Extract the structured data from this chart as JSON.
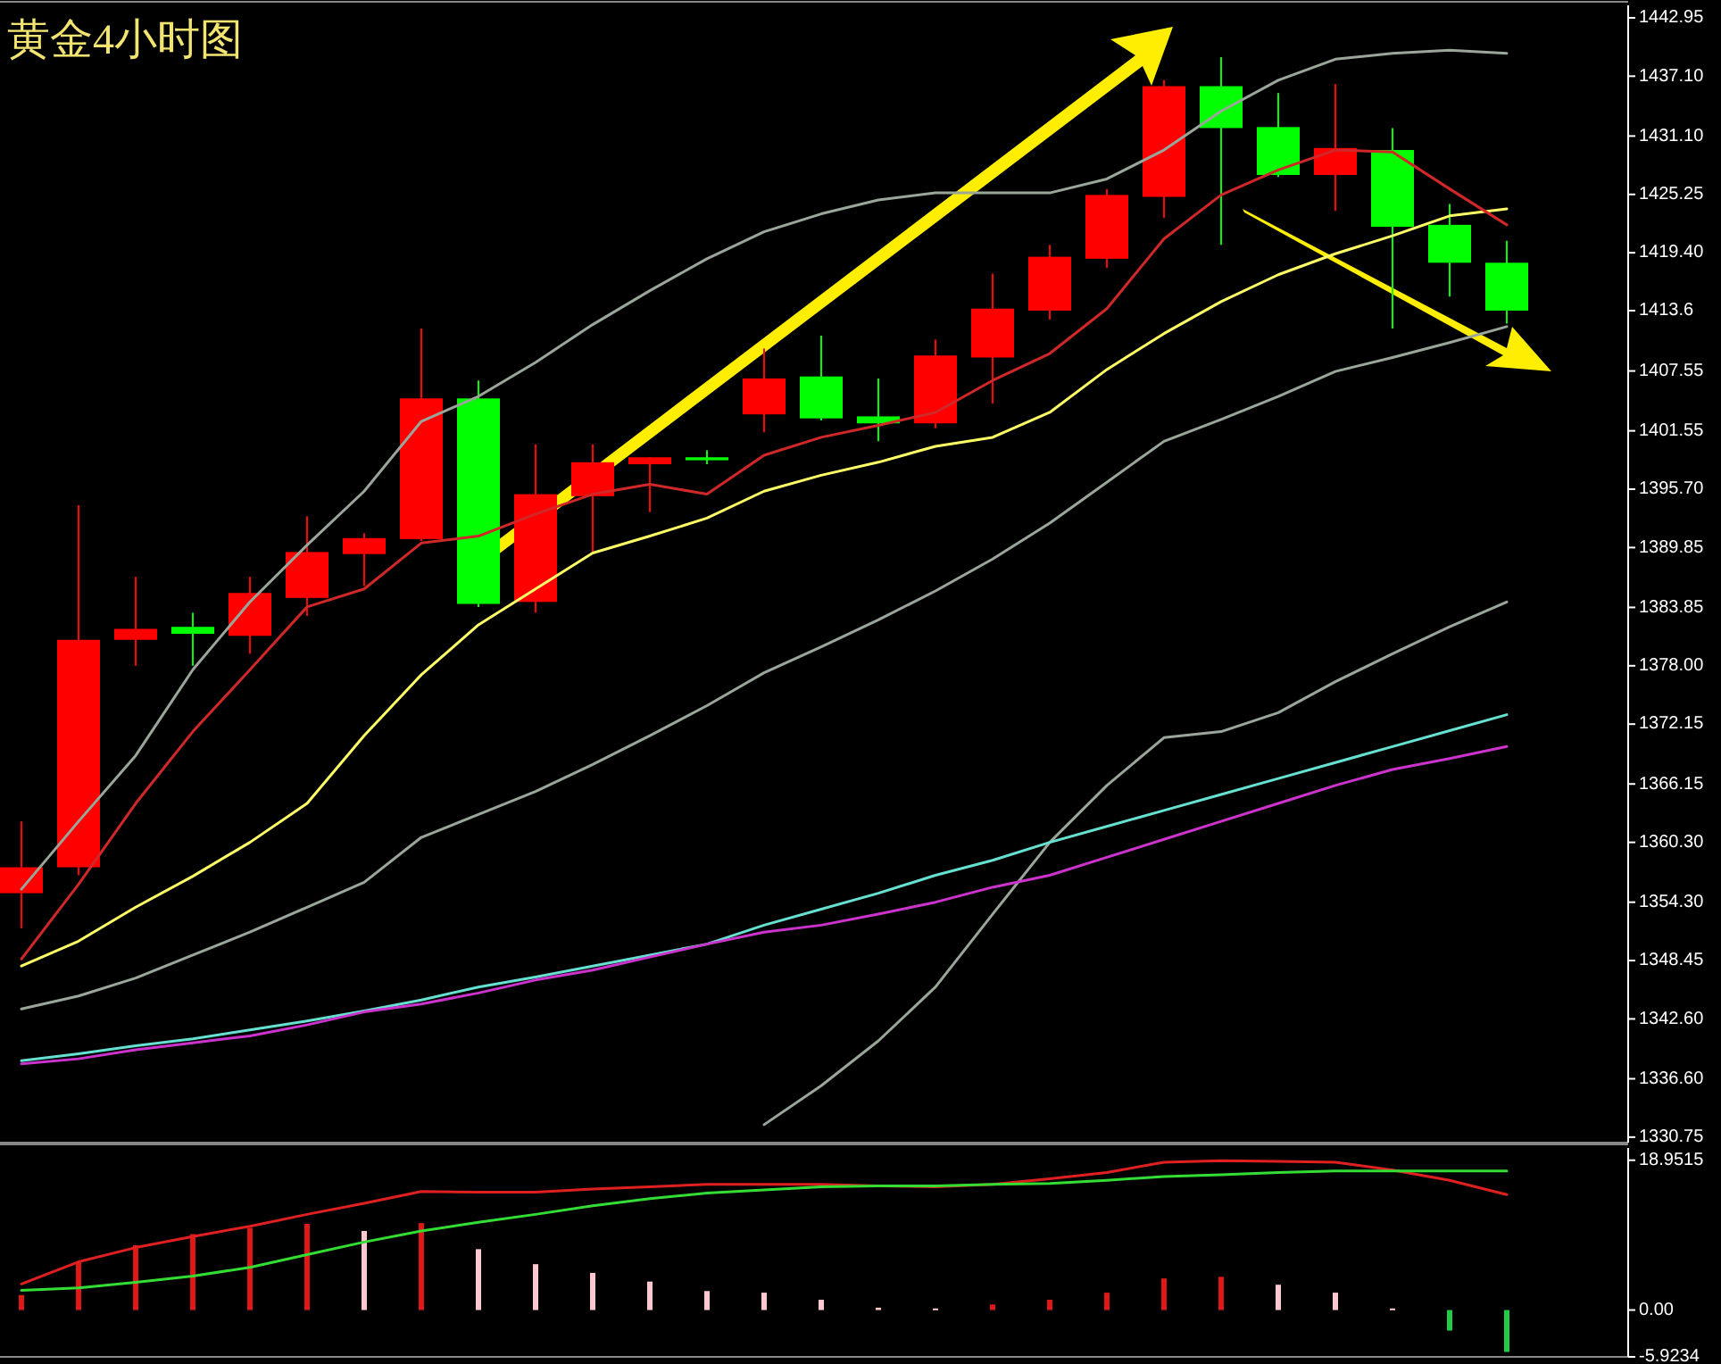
{
  "chart_data": [
    {
      "type": "candlestick",
      "title": "黄金4小时图",
      "categories": [
        null,
        null,
        null,
        null,
        null,
        null,
        null,
        null,
        null,
        null,
        null,
        null,
        null,
        null,
        null,
        null,
        null,
        null,
        null,
        null,
        null,
        null,
        null,
        null,
        null,
        null,
        null
      ],
      "ohlc": [
        [
          1355.2,
          1362.4,
          1351.7,
          1357.8
        ],
        [
          1357.8,
          1394.1,
          1357.0,
          1380.6
        ],
        [
          1380.6,
          1386.9,
          1378.0,
          1381.7
        ],
        [
          1381.9,
          1383.3,
          1378.0,
          1381.2
        ],
        [
          1381.0,
          1386.9,
          1379.2,
          1385.3
        ],
        [
          1384.8,
          1393.0,
          1383.0,
          1389.4
        ],
        [
          1389.2,
          1391.3,
          1386.0,
          1390.8
        ],
        [
          1390.7,
          1411.8,
          1390.5,
          1404.8
        ],
        [
          1404.8,
          1406.6,
          1383.9,
          1384.2
        ],
        [
          1384.4,
          1400.2,
          1383.3,
          1395.2
        ],
        [
          1395.0,
          1400.2,
          1389.2,
          1398.4
        ],
        [
          1398.2,
          1398.9,
          1393.4,
          1398.9
        ],
        [
          1398.9,
          1399.6,
          1398.2,
          1398.6
        ],
        [
          1403.2,
          1409.8,
          1401.4,
          1406.8
        ],
        [
          1407.0,
          1411.1,
          1402.6,
          1402.8
        ],
        [
          1403.0,
          1406.8,
          1400.5,
          1402.3
        ],
        [
          1402.3,
          1410.7,
          1401.8,
          1409.1
        ],
        [
          1408.9,
          1417.3,
          1404.3,
          1413.8
        ],
        [
          1413.6,
          1420.2,
          1412.7,
          1419.0
        ],
        [
          1418.8,
          1425.8,
          1417.9,
          1425.2
        ],
        [
          1425.0,
          1436.7,
          1422.9,
          1436.1
        ],
        [
          1436.1,
          1439.0,
          1420.2,
          1431.9
        ],
        [
          1432.0,
          1435.4,
          1427.0,
          1427.2
        ],
        [
          1427.2,
          1436.3,
          1423.6,
          1429.9
        ],
        [
          1429.7,
          1431.9,
          1411.8,
          1422.0
        ],
        [
          1422.2,
          1424.3,
          1415.0,
          1418.4
        ],
        [
          1418.4,
          1420.6,
          1412.3,
          1413.6
        ]
      ],
      "colors": [
        "#ff0000",
        "#ff0000",
        "#ff0000",
        "#00ff00",
        "#ff0000",
        "#ff0000",
        "#ff0000",
        "#ff0000",
        "#00ff00",
        "#ff0000",
        "#ff0000",
        "#ff0000",
        "#00ff00",
        "#ff0000",
        "#00ff00",
        "#00ff00",
        "#ff0000",
        "#ff0000",
        "#ff0000",
        "#ff0000",
        "#ff0000",
        "#00ff00",
        "#00ff00",
        "#ff0000",
        "#00ff00",
        "#00ff00",
        "#00ff00"
      ],
      "series": [
        {
          "type": "line",
          "color": "#9aa69a",
          "values": [
            1355.6,
            1362.4,
            1369.0,
            1377.6,
            1384.4,
            1390.1,
            1395.5,
            1402.5,
            1405.0,
            1408.4,
            1412.2,
            1415.6,
            1418.8,
            1421.5,
            1423.3,
            1424.7,
            1425.4,
            1425.4,
            1425.4,
            1426.8,
            1429.7,
            1433.6,
            1436.7,
            1438.8,
            1439.4,
            1439.7,
            1439.4
          ]
        },
        {
          "type": "line",
          "color": "#9aa69a",
          "values": [
            1343.6,
            1344.9,
            1346.7,
            1349.0,
            1351.3,
            1353.8,
            1356.3,
            1360.8,
            1363.1,
            1365.4,
            1368.1,
            1371.0,
            1374.0,
            1377.3,
            1379.9,
            1382.6,
            1385.5,
            1388.7,
            1392.3,
            1396.4,
            1400.5,
            1402.7,
            1405.0,
            1407.5,
            1408.9,
            1410.4,
            1412.0
          ]
        },
        {
          "type": "line",
          "color": "#9aa69a",
          "values": [
            null,
            null,
            null,
            null,
            null,
            null,
            null,
            null,
            null,
            null,
            null,
            null,
            null,
            1332.0,
            1335.9,
            1340.4,
            1345.8,
            1353.1,
            1360.3,
            1366.0,
            1370.8,
            1371.4,
            1373.3,
            1376.4,
            1379.2,
            1381.9,
            1384.4
          ]
        },
        {
          "type": "line",
          "color": "#66e0d0",
          "values": [
            1338.4,
            1339.1,
            1339.9,
            1340.6,
            1341.5,
            1342.4,
            1343.4,
            1344.5,
            1345.8,
            1346.8,
            1347.9,
            1349.0,
            1350.1,
            1352.0,
            1353.6,
            1355.2,
            1357.0,
            1358.5,
            1360.3,
            1361.9,
            1363.5,
            1365.1,
            1366.7,
            1368.3,
            1369.9,
            1371.5,
            1373.1
          ]
        },
        {
          "type": "line",
          "color": "#cc33cc",
          "values": [
            1338.1,
            1338.6,
            1339.5,
            1340.2,
            1340.9,
            1342.0,
            1343.3,
            1344.1,
            1345.2,
            1346.5,
            1347.5,
            1348.8,
            1350.1,
            1351.3,
            1352.0,
            1353.1,
            1354.3,
            1355.8,
            1357.0,
            1358.8,
            1360.6,
            1362.4,
            1364.2,
            1366.0,
            1367.6,
            1368.7,
            1369.9
          ]
        },
        {
          "type": "line",
          "color": "#ffff66",
          "values": [
            1347.9,
            1350.4,
            1353.8,
            1356.9,
            1360.3,
            1364.2,
            1371.0,
            1377.1,
            1382.1,
            1385.7,
            1389.3,
            1391.0,
            1392.8,
            1395.5,
            1397.1,
            1398.4,
            1400.0,
            1400.9,
            1403.4,
            1407.7,
            1411.3,
            1414.5,
            1417.2,
            1419.3,
            1421.1,
            1423.1,
            1423.8
          ]
        },
        {
          "type": "line",
          "color": "#d02828",
          "values": [
            1348.6,
            1356.1,
            1364.2,
            1371.4,
            1377.6,
            1383.9,
            1385.7,
            1390.3,
            1391.0,
            1393.2,
            1395.2,
            1396.2,
            1395.2,
            1399.1,
            1400.9,
            1402.1,
            1403.4,
            1406.6,
            1409.3,
            1413.8,
            1420.8,
            1425.2,
            1427.7,
            1429.7,
            1429.5,
            1425.8,
            1422.2
          ]
        }
      ],
      "ylim": [
        1330.2,
        1444.2
      ],
      "yticks": [
        {
          "value": 1442.95,
          "label": "1442.95"
        },
        {
          "value": 1437.1,
          "label": "1437.10"
        },
        {
          "value": 1431.1,
          "label": "1431.10"
        },
        1425.25,
        {
          "value": 1419.4,
          "label": "1419.40"
        },
        1413.6,
        1407.55,
        1401.55,
        {
          "value": 1395.7,
          "label": "1395.70"
        },
        1389.85,
        1383.85,
        {
          "value": 1378,
          "label": "1378.00"
        },
        1372.15,
        1366.15,
        {
          "value": 1360.3,
          "label": "1360.30"
        },
        {
          "value": 1354.3,
          "label": "1354.30"
        },
        1348.45,
        {
          "value": 1342.6,
          "label": "1342.60"
        },
        {
          "value": 1336.6,
          "label": "1336.60"
        },
        1330.75
      ],
      "tick_labels": "y"
    },
    {
      "type": "bar",
      "categories": [
        null,
        null,
        null,
        null,
        null,
        null,
        null,
        null,
        null,
        null,
        null,
        null,
        null,
        null,
        null,
        null,
        null,
        null,
        null,
        null,
        null,
        null,
        null,
        null,
        null,
        null,
        null
      ],
      "values": [
        1.9,
        6.1,
        8.2,
        9.6,
        10.4,
        10.9,
        10.0,
        11.0,
        7.7,
        5.8,
        4.7,
        3.6,
        2.4,
        2.2,
        1.3,
        0.3,
        0.2,
        0.7,
        1.3,
        2.2,
        4.0,
        4.2,
        3.2,
        2.2,
        0.2,
        -2.6,
        -5.3
      ],
      "colors": [
        "#e01818",
        "#e01818",
        "#e01818",
        "#e01818",
        "#e01818",
        "#e01818",
        "#ffc8d0",
        "#e01818",
        "#ffc8d0",
        "#ffc8d0",
        "#ffc8d0",
        "#ffc8d0",
        "#ffc8d0",
        "#ffc8d0",
        "#ffc8d0",
        "#ffc8d0",
        "#ffc8d0",
        "#e01818",
        "#e01818",
        "#e01818",
        "#e01818",
        "#e01818",
        "#ffc8d0",
        "#ffc8d0",
        "#ffc8d0",
        "#22cc44",
        "#22cc44"
      ],
      "series": [
        {
          "type": "line",
          "color": "#e02020",
          "values": [
            3.3,
            6.1,
            7.9,
            9.3,
            10.6,
            12.1,
            13.5,
            15.0,
            14.9,
            14.9,
            15.3,
            15.6,
            15.9,
            15.9,
            15.9,
            15.7,
            15.6,
            15.9,
            16.6,
            17.4,
            18.7,
            18.9,
            18.8,
            18.7,
            17.7,
            16.4,
            14.6
          ]
        },
        {
          "type": "line",
          "color": "#33dd33",
          "values": [
            2.5,
            2.8,
            3.5,
            4.3,
            5.4,
            7.0,
            8.6,
            10.0,
            11.1,
            12.1,
            13.2,
            14.1,
            14.8,
            15.2,
            15.6,
            15.7,
            15.7,
            15.9,
            16.0,
            16.4,
            16.9,
            17.1,
            17.4,
            17.6,
            17.6,
            17.6,
            17.6
          ]
        }
      ],
      "ylim": [
        -5.9234,
        20.5
      ],
      "yticks": [
        18.9515,
        {
          "value": 0,
          "label": "0.00"
        },
        -5.9234
      ],
      "tick_labels": "y"
    }
  ]
}
